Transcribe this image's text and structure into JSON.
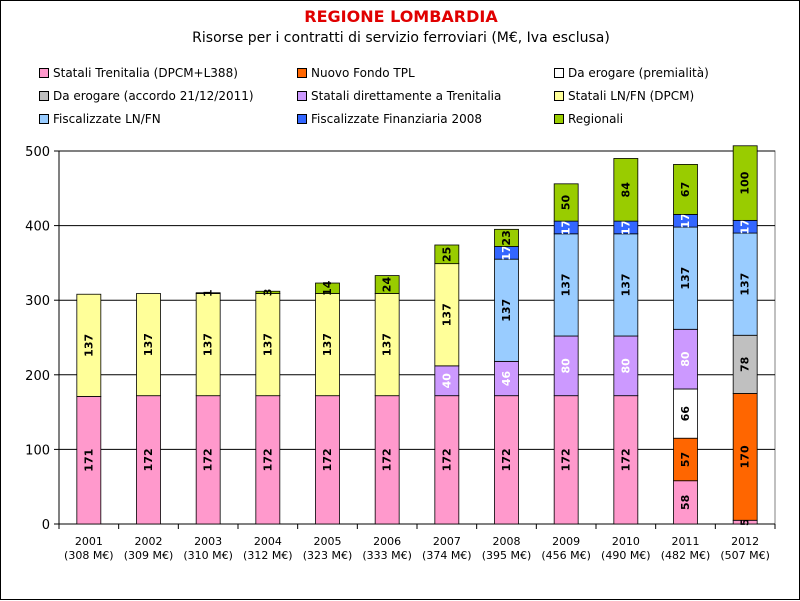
{
  "title": "REGIONE LOMBARDIA",
  "subtitle": "Risorse per i contratti di servizio ferroviari (M€, Iva esclusa)",
  "chart_data": {
    "type": "bar",
    "stacked": true,
    "categories": [
      "2001",
      "2002",
      "2003",
      "2004",
      "2005",
      "2006",
      "2007",
      "2008",
      "2009",
      "2010",
      "2011",
      "2012"
    ],
    "category_totals": [
      "(308 M€)",
      "(309 M€)",
      "(310 M€)",
      "(312 M€)",
      "(323 M€)",
      "(333 M€)",
      "(374 M€)",
      "(395 M€)",
      "(456 M€)",
      "(490 M€)",
      "(482 M€)",
      "(507 M€)"
    ],
    "ylim": [
      0,
      500
    ],
    "yticks": [
      0,
      100,
      200,
      300,
      400,
      500
    ],
    "gridlines": true,
    "legend_position": "top",
    "series": [
      {
        "name": "Statali Trenitalia (DPCM+L388)",
        "color": "#ff99cc",
        "label_color": "#000000",
        "values": [
          171,
          172,
          172,
          172,
          172,
          172,
          172,
          172,
          172,
          172,
          58,
          5
        ]
      },
      {
        "name": "Nuovo Fondo TPL",
        "color": "#ff6600",
        "label_color": "#000000",
        "values": [
          0,
          0,
          0,
          0,
          0,
          0,
          0,
          0,
          0,
          0,
          57,
          170
        ]
      },
      {
        "name": "Da erogare (premialità)",
        "color": "#ffffff",
        "label_color": "#000000",
        "values": [
          0,
          0,
          0,
          0,
          0,
          0,
          0,
          0,
          0,
          0,
          66,
          0
        ]
      },
      {
        "name": "Da erogare (accordo 21/12/2011)",
        "color": "#c0c0c0",
        "label_color": "#000000",
        "values": [
          0,
          0,
          0,
          0,
          0,
          0,
          0,
          0,
          0,
          0,
          0,
          78
        ]
      },
      {
        "name": "Statali direttamente a Trenitalia",
        "color": "#cc99ff",
        "label_color": "#ffffff",
        "values": [
          0,
          0,
          0,
          0,
          0,
          0,
          40,
          46,
          80,
          80,
          80,
          0
        ]
      },
      {
        "name": "Statali LN/FN (DPCM)",
        "color": "#ffff99",
        "label_color": "#000000",
        "values": [
          137,
          137,
          137,
          137,
          137,
          137,
          137,
          0,
          0,
          0,
          0,
          0
        ]
      },
      {
        "name": "Fiscalizzate LN/FN",
        "color": "#99ccff",
        "label_color": "#000000",
        "values": [
          0,
          0,
          0,
          0,
          0,
          0,
          0,
          137,
          137,
          137,
          137,
          137
        ]
      },
      {
        "name": "Fiscalizzate Finanziaria 2008",
        "color": "#3366ff",
        "label_color": "#ffffff",
        "values": [
          0,
          0,
          0,
          0,
          0,
          0,
          0,
          17,
          17,
          17,
          17,
          17
        ]
      },
      {
        "name": "Regionali",
        "color": "#99cc00",
        "label_color": "#000000",
        "values": [
          0,
          0,
          1,
          3,
          14,
          24,
          25,
          23,
          50,
          84,
          67,
          100
        ]
      }
    ]
  }
}
